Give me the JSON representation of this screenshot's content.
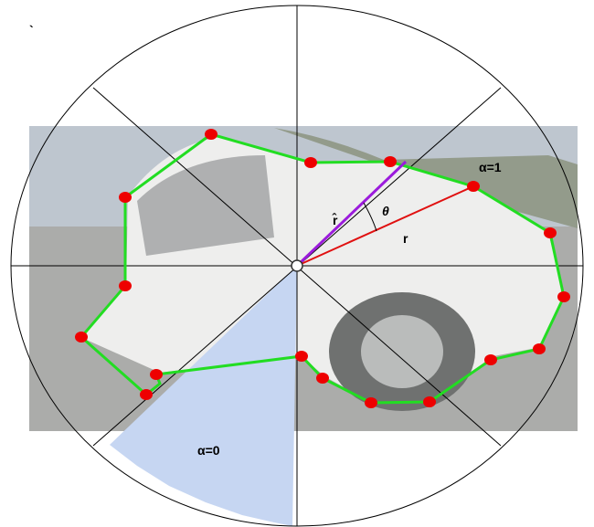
{
  "labels": {
    "corner_mark": "`",
    "alpha_one": "α=1",
    "theta": "θ",
    "r_hat": "r̂",
    "r": "r",
    "alpha_zero": "α=0"
  }
}
